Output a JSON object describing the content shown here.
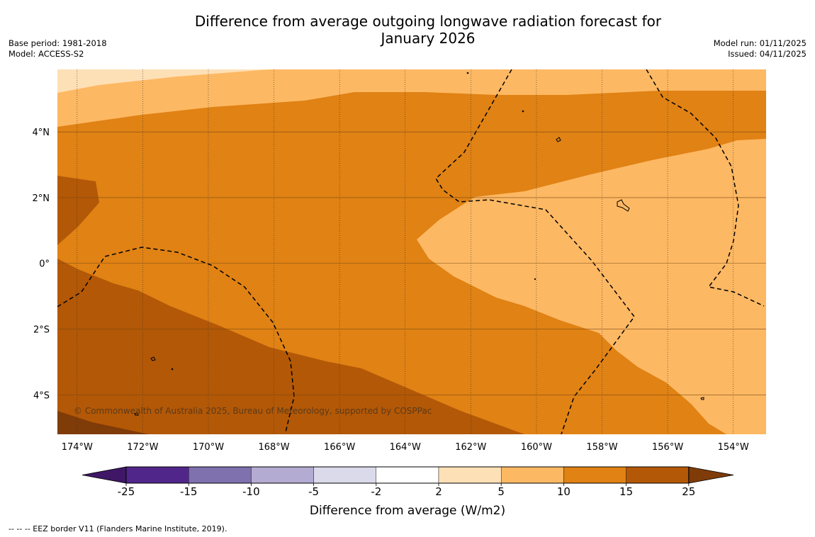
{
  "title": {
    "line1": "Difference from average outgoing longwave radiation forecast for",
    "line2": "January 2026"
  },
  "meta_left": {
    "base_period": "Base period: 1981-2018",
    "model": "Model: ACCESS-S2"
  },
  "meta_right": {
    "model_run": "Model run: 01/11/2025",
    "issued": "Issued: 04/11/2025"
  },
  "map": {
    "lon_labels": [
      "174°W",
      "172°W",
      "170°W",
      "168°W",
      "166°W",
      "164°W",
      "162°W",
      "160°W",
      "158°W",
      "156°W",
      "154°W"
    ],
    "lon_values": [
      -174,
      -172,
      -170,
      -168,
      -166,
      -164,
      -162,
      -160,
      -158,
      -156,
      -154
    ],
    "lat_labels": [
      "4°N",
      "2°N",
      "0°",
      "2°S",
      "4°S"
    ],
    "lat_values": [
      4,
      2,
      0,
      -2,
      -4
    ],
    "lon_range": [
      -174.6,
      -153.0
    ],
    "lat_range": [
      -5.2,
      5.9
    ],
    "copyright": "© Commonwealth of Australia 2025, Bureau of Meteorology, supported by COSPPac"
  },
  "colorbar": {
    "title": "Difference from average (W/m2)",
    "levels": [
      "-25",
      "-15",
      "-10",
      "-5",
      "-2",
      "2",
      "5",
      "10",
      "15",
      "25"
    ],
    "colors": [
      "#3f1766",
      "#51268a",
      "#7e71ae",
      "#b4abd2",
      "#dbdaeb",
      "#ffffff",
      "#fee0b6",
      "#fdb863",
      "#e08214",
      "#b35806",
      "#7f3b08"
    ]
  },
  "legend": {
    "eez_text": "-- -- -- EEZ border V11 (Flanders Marine Institute, 2019)."
  }
}
